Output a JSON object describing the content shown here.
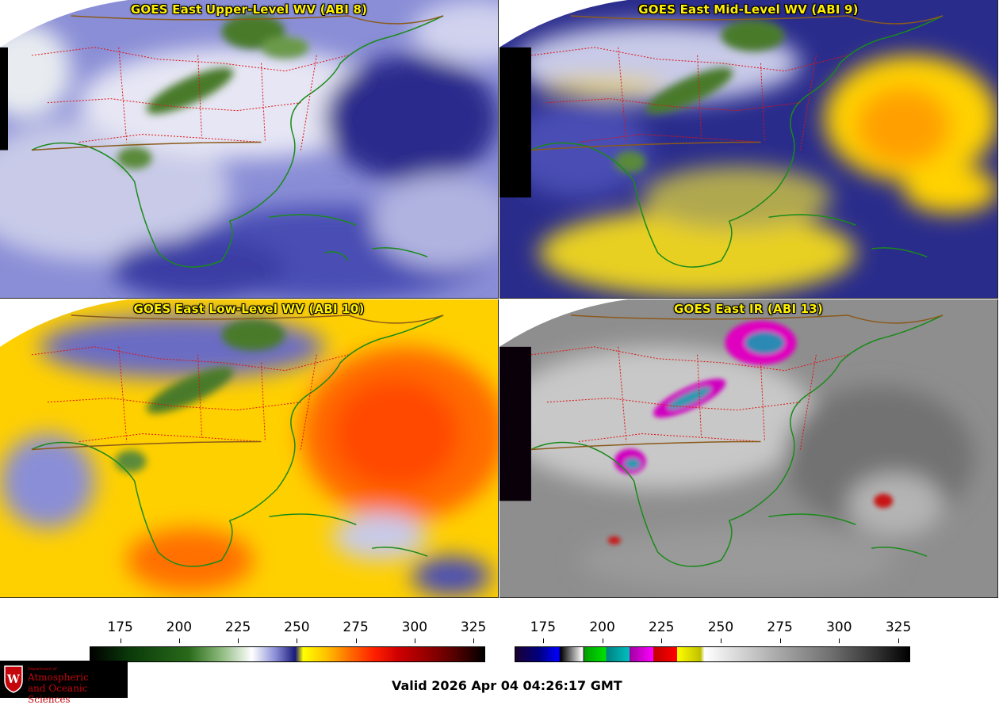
{
  "panels": [
    {
      "title": "GOES East Upper-Level WV (ABI 8)",
      "scheme": "upper"
    },
    {
      "title": "GOES East Mid-Level WV (ABI 9)",
      "scheme": "mid"
    },
    {
      "title": "GOES East Low-Level WV (ABI 10)",
      "scheme": "low"
    },
    {
      "title": "GOES East IR (ABI 13)",
      "scheme": "ir"
    }
  ],
  "colorbar_wv": {
    "ticks": [
      "175",
      "200",
      "225",
      "250",
      "275",
      "300",
      "325"
    ],
    "tick_values": [
      175,
      200,
      225,
      250,
      275,
      300,
      325
    ],
    "range": [
      162,
      330
    ]
  },
  "colorbar_ir": {
    "ticks": [
      "175",
      "200",
      "225",
      "250",
      "275",
      "300",
      "325"
    ],
    "tick_values": [
      175,
      200,
      225,
      250,
      275,
      300,
      325
    ],
    "range": [
      163,
      330
    ]
  },
  "colors": {
    "coastline": "#1a8a1a",
    "state_lines": "#e01010",
    "country_lines": "#8b5a1a",
    "title": "#ffef00"
  },
  "logo": {
    "dept": "Department of",
    "line1": "Atmospheric",
    "line2": "and Oceanic Sciences",
    "icon": "uw-crest-icon"
  },
  "valid_text": "Valid 2026 Apr 04 04:26:17 GMT"
}
